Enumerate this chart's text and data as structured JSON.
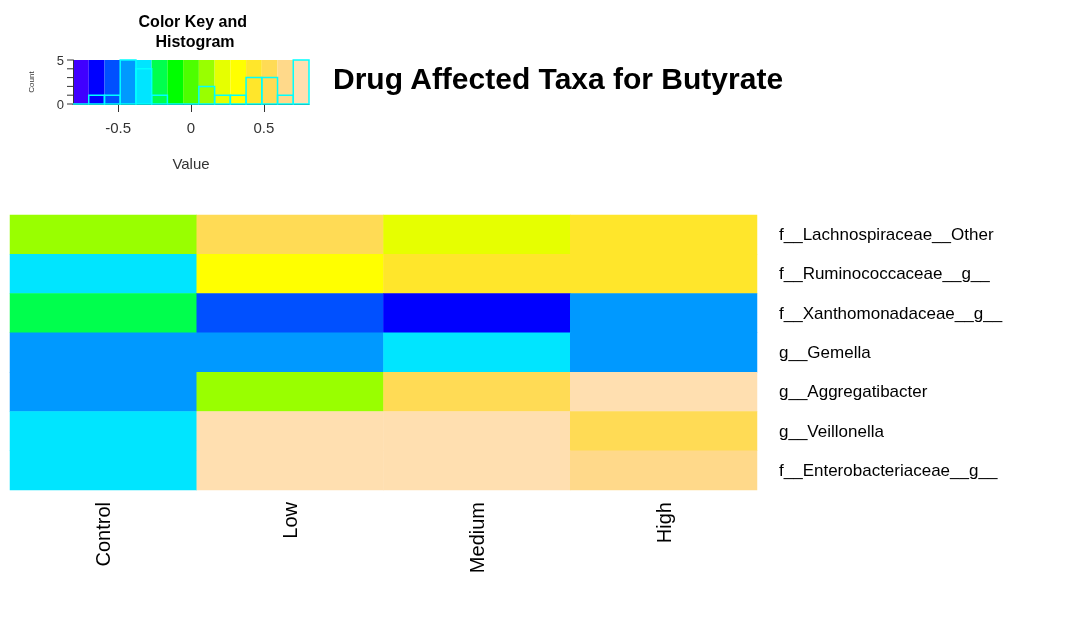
{
  "chart_data": [
    {
      "type": "heatmap",
      "title": "Drug Affected Taxa for Butyrate",
      "categories": [
        "Control",
        "Low",
        "Medium",
        "High"
      ],
      "y_categories": [
        "f__Lachnospiraceae__Other",
        "f__Ruminococcaceae__g__",
        "f__Xanthomonadaceae__g__",
        "g__Gemella",
        "g__Aggregatibacter",
        "g__Veillonella",
        "f__Enterobacteriaceae__g__"
      ],
      "cells": [
        [
          0.11,
          0.54,
          0.22,
          0.43
        ],
        [
          -0.32,
          0.32,
          0.43,
          0.43
        ],
        [
          -0.22,
          -0.54,
          -0.65,
          -0.43
        ],
        [
          -0.43,
          -0.43,
          -0.32,
          -0.43
        ],
        [
          -0.43,
          0.11,
          0.54,
          0.76
        ],
        [
          -0.32,
          0.76,
          0.76,
          0.54
        ],
        [
          -0.32,
          0.76,
          0.76,
          0.65
        ]
      ],
      "clim": [
        -0.81,
        0.81
      ],
      "cticks": [
        -0.5,
        0,
        0.5
      ],
      "clabel": "Value",
      "colors": [
        "#4000ff",
        "#0000ff",
        "#0050ff",
        "#0099ff",
        "#00e5ff",
        "#00ff4d",
        "#00ff00",
        "#4dff00",
        "#99ff00",
        "#e6ff00",
        "#ffff00",
        "#ffe62b",
        "#ffdb55",
        "#ffd98a",
        "#ffdfb0"
      ]
    },
    {
      "type": "histogram",
      "title": "Color Key and Histogram",
      "ylabel": "Count",
      "bins": [
        -0.81,
        -0.702,
        -0.594,
        -0.486,
        -0.378,
        -0.27,
        -0.162,
        -0.054,
        0.054,
        0.162,
        0.27,
        0.378,
        0.486,
        0.594,
        0.702,
        0.81
      ],
      "values": [
        0,
        1,
        1,
        5,
        4,
        1,
        0,
        0,
        2,
        1,
        1,
        3,
        3,
        1,
        5
      ],
      "color": "#00ffff",
      "xlim": [
        -0.81,
        0.81
      ],
      "xticks": [
        -0.5,
        0,
        0.5
      ],
      "tick_labels": "y",
      "ylim": [
        0,
        5
      ],
      "yticks": [
        0,
        {
          "value": 1,
          "label": null
        },
        {
          "value": 2,
          "label": null
        },
        {
          "value": 3,
          "label": null
        },
        {
          "value": 4,
          "label": null
        },
        5
      ]
    }
  ]
}
